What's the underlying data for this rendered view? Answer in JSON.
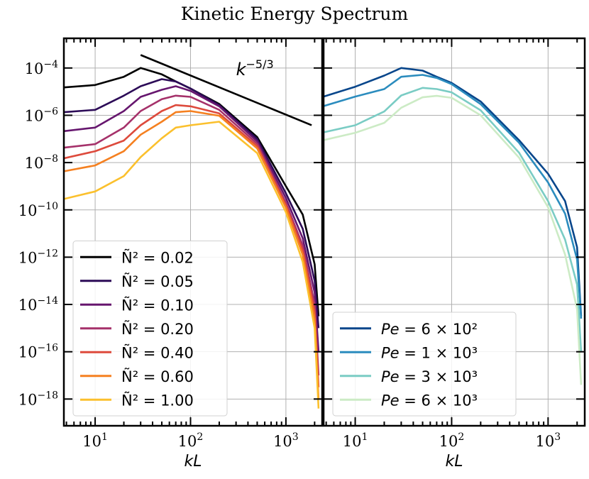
{
  "chart_data": {
    "type": "line",
    "title": "Kinetic Energy Spectrum",
    "panels": [
      {
        "xlabel": "kL",
        "ylabel": "",
        "xscale": "log",
        "yscale": "log",
        "xlim": [
          4.7,
          2400
        ],
        "ylim": [
          7.4e-20,
          0.0018
        ],
        "xticks": [
          {
            "base": "10",
            "exp": "1",
            "value": 10
          },
          {
            "base": "10",
            "exp": "2",
            "value": 100
          },
          {
            "base": "10",
            "exp": "3",
            "value": 1000
          }
        ],
        "yticks": [
          {
            "base": "10",
            "exp": "−4",
            "value": -4
          },
          {
            "base": "10",
            "exp": "−6",
            "value": -6
          },
          {
            "base": "10",
            "exp": "−8",
            "value": -8
          },
          {
            "base": "10",
            "exp": "−10",
            "value": -10
          },
          {
            "base": "10",
            "exp": "−12",
            "value": -12
          },
          {
            "base": "10",
            "exp": "−14",
            "value": -14
          },
          {
            "base": "10",
            "exp": "−16",
            "value": -16
          },
          {
            "base": "10",
            "exp": "−18",
            "value": -18
          }
        ],
        "grid": true,
        "legend_position": "lower-left",
        "x": [
          4.7,
          10,
          20,
          30,
          50,
          70,
          100,
          200,
          500,
          1000,
          1500,
          2000,
          2200
        ],
        "series_log10_y": true,
        "series": [
          {
            "name": "Ñ² = 0.02",
            "color": "#000000",
            "log10_values": [
              -4.82,
              -4.72,
              -4.37,
              -4.0,
              -4.27,
              -4.57,
              -4.87,
              -5.52,
              -6.92,
              -9.0,
              -10.2,
              -12.3,
              -14.5
            ]
          },
          {
            "name": "Ñ² = 0.05",
            "color": "#2c0b57",
            "log10_values": [
              -5.87,
              -5.77,
              -5.17,
              -4.77,
              -4.47,
              -4.57,
              -4.87,
              -5.57,
              -7.0,
              -9.3,
              -10.8,
              -13.0,
              -15.0
            ]
          },
          {
            "name": "Ñ² = 0.10",
            "color": "#66166e",
            "log10_values": [
              -6.67,
              -6.52,
              -5.82,
              -5.22,
              -4.92,
              -4.77,
              -4.97,
              -5.62,
              -7.1,
              -9.5,
              -11.2,
              -13.5,
              -16.0
            ]
          },
          {
            "name": "Ñ² = 0.20",
            "color": "#a5316a",
            "log10_values": [
              -7.37,
              -7.22,
              -6.52,
              -5.82,
              -5.32,
              -5.17,
              -5.22,
              -5.77,
              -7.2,
              -9.7,
              -11.5,
              -14.0,
              -17.0
            ]
          },
          {
            "name": "Ñ² = 0.40",
            "color": "#dd4a3c",
            "log10_values": [
              -7.82,
              -7.52,
              -7.07,
              -6.42,
              -5.82,
              -5.57,
              -5.62,
              -5.92,
              -7.3,
              -9.8,
              -11.7,
              -14.3,
              -17.5
            ]
          },
          {
            "name": "Ñ² = 0.60",
            "color": "#f58020",
            "log10_values": [
              -8.37,
              -8.12,
              -7.52,
              -6.82,
              -6.27,
              -5.87,
              -5.82,
              -6.02,
              -7.4,
              -9.9,
              -11.9,
              -14.6,
              -18.0
            ]
          },
          {
            "name": "Ñ² = 1.00",
            "color": "#fbc02d",
            "log10_values": [
              -9.54,
              -9.22,
              -8.57,
              -7.77,
              -6.97,
              -6.52,
              -6.42,
              -6.27,
              -7.6,
              -10.1,
              -12.2,
              -15.0,
              -18.4
            ]
          }
        ],
        "reference_line": {
          "label_base": "k",
          "label_exp": "−5/3",
          "x": [
            30,
            1860
          ],
          "log10_y": [
            -3.45,
            -6.42
          ],
          "label_x": 300,
          "label_log10_y": -4.3,
          "color": "#000000"
        }
      },
      {
        "xlabel": "kL",
        "xscale": "log",
        "yscale": "log",
        "xlim": [
          4.7,
          2400
        ],
        "ylim": [
          7.4e-20,
          0.0018
        ],
        "xticks": [
          {
            "base": "10",
            "exp": "1",
            "value": 10
          },
          {
            "base": "10",
            "exp": "2",
            "value": 100
          },
          {
            "base": "10",
            "exp": "3",
            "value": 1000
          }
        ],
        "grid": true,
        "legend_position": "lower-left",
        "x": [
          4.7,
          10,
          20,
          30,
          50,
          70,
          100,
          200,
          500,
          1000,
          1500,
          2000,
          2200
        ],
        "series": [
          {
            "name": "Pe = 6 × 10²",
            "color": "#08468b",
            "log10_values": [
              -5.21,
              -4.79,
              -4.32,
              -4.0,
              -4.11,
              -4.37,
              -4.63,
              -5.42,
              -7.05,
              -8.47,
              -9.63,
              -11.58,
              -14.5
            ]
          },
          {
            "name": "Pe = 1 × 10³",
            "color": "#2b8cbe",
            "log10_values": [
              -5.61,
              -5.21,
              -4.89,
              -4.37,
              -4.29,
              -4.42,
              -4.68,
              -5.53,
              -7.16,
              -8.84,
              -10.16,
              -12.1,
              -14.6
            ]
          },
          {
            "name": "Pe = 3 × 10³",
            "color": "#7accc4",
            "log10_values": [
              -6.72,
              -6.42,
              -5.84,
              -5.16,
              -4.84,
              -4.89,
              -5.03,
              -5.79,
              -7.58,
              -9.63,
              -11.26,
              -13.16,
              -16.0
            ]
          },
          {
            "name": "Pe = 6 × 10³",
            "color": "#ccebc5",
            "log10_values": [
              -7.05,
              -6.74,
              -6.32,
              -5.68,
              -5.24,
              -5.18,
              -5.26,
              -6.0,
              -7.79,
              -9.89,
              -11.89,
              -14.2,
              -17.4
            ]
          }
        ]
      }
    ]
  }
}
